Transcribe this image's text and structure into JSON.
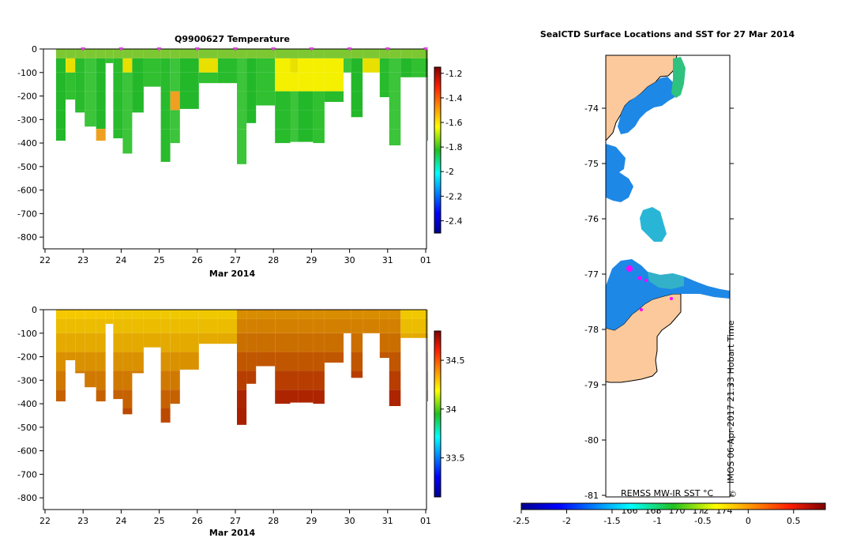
{
  "chart_data": [
    {
      "type": "heatmap",
      "title": "Q9900627  Temperature",
      "xlabel": "Mar 2014",
      "x_ticks": [
        "22",
        "23",
        "24",
        "25",
        "26",
        "27",
        "28",
        "29",
        "30",
        "31",
        "01"
      ],
      "y_ticks": [
        "0",
        "-100",
        "-200",
        "-300",
        "-400",
        "-500",
        "-600",
        "-700",
        "-800"
      ],
      "ylim": [
        -850,
        0
      ],
      "colorbar": {
        "range": [
          -2.5,
          -1.15
        ],
        "ticks": [
          "-1.2",
          "-1.4",
          "-1.6",
          "-1.8",
          "-2",
          "-2.2",
          "-2.4"
        ]
      },
      "profile_days": [
        22.25,
        22.5,
        22.75,
        23.0,
        23.3,
        23.55,
        23.75,
        24.0,
        24.25,
        24.55,
        25.0,
        25.25,
        25.5,
        26.0,
        26.5,
        27.0,
        27.25,
        27.5,
        28.0,
        28.4,
        28.6,
        29.0,
        29.3,
        29.8,
        30.0,
        30.3,
        30.75,
        31.0,
        31.3,
        31.6,
        32.0
      ],
      "profile_depth_m": [
        -390,
        -215,
        -270,
        -330,
        -390,
        -60,
        -380,
        -445,
        -270,
        -160,
        -480,
        -400,
        -255,
        -145,
        -145,
        -490,
        -315,
        -240,
        -400,
        -395,
        -395,
        -400,
        -225,
        -100,
        -290,
        -100,
        -205,
        -410,
        -120,
        -120,
        -390
      ],
      "surface_markers_day": [
        23,
        24,
        25,
        26,
        27,
        28,
        29,
        30,
        31,
        32
      ]
    },
    {
      "type": "heatmap",
      "title": "",
      "xlabel": "Mar 2014",
      "x_ticks": [
        "22",
        "23",
        "24",
        "25",
        "26",
        "27",
        "28",
        "29",
        "30",
        "31",
        "01"
      ],
      "y_ticks": [
        "0",
        "-100",
        "-200",
        "-300",
        "-400",
        "-500",
        "-600",
        "-700",
        "-800"
      ],
      "ylim": [
        -850,
        0
      ],
      "colorbar": {
        "range": [
          33.1,
          34.8
        ],
        "ticks": [
          "34.5",
          "34",
          "33.5"
        ]
      }
    },
    {
      "type": "map",
      "title": "SealCTD Surface Locations and SST for 27 Mar 2014",
      "y_ticks": [
        "-74",
        "-75",
        "-76",
        "-77",
        "-78",
        "-79",
        "-80",
        "-81"
      ],
      "colorbar": {
        "range": [
          -2.5,
          0.85
        ],
        "ticks": [
          "-2.5",
          "-2",
          "-1.5",
          "-1",
          "-0.5",
          "0",
          "0.5"
        ]
      },
      "colorbar_label": "REMSS MW-IR SST °C",
      "stamp": "IMOS 06-Apr-2017 21:33 Hobart Time",
      "obscured_longitude_labels": [
        "166",
        "168",
        "170",
        "172",
        "174"
      ]
    }
  ]
}
